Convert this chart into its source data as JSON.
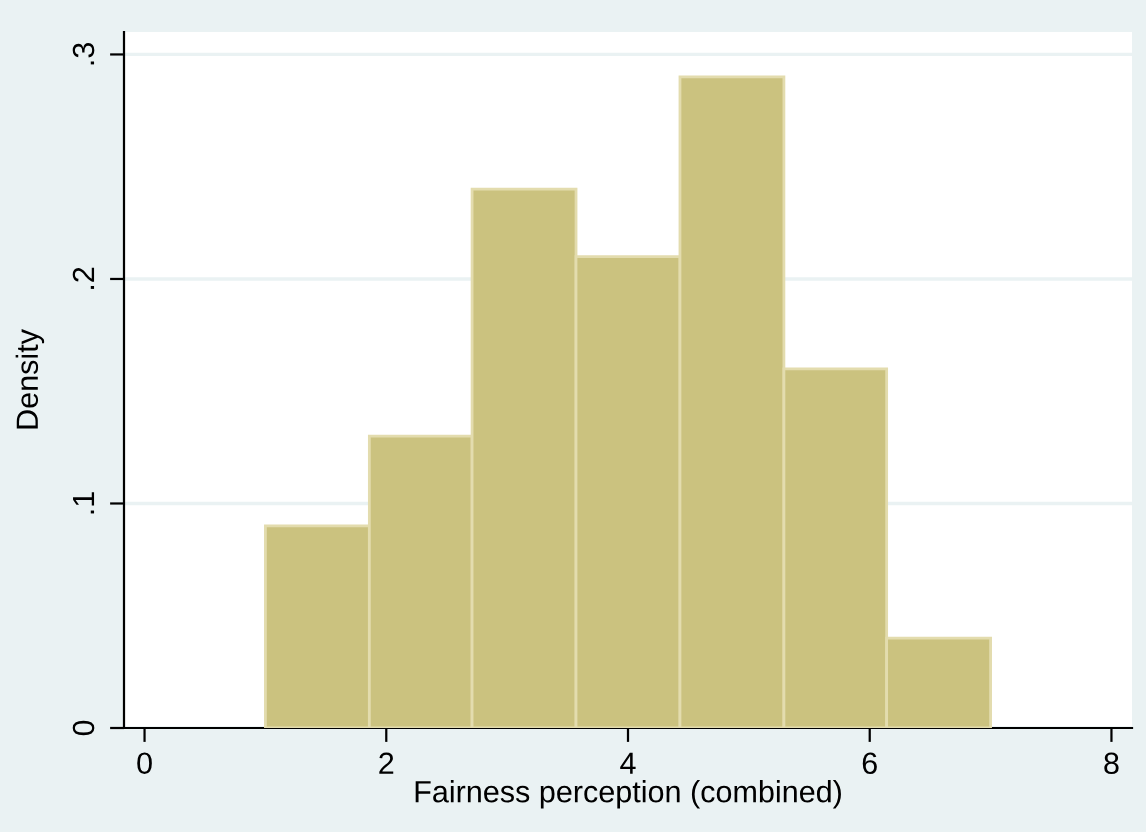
{
  "chart_data": {
    "type": "histogram",
    "xlabel": "Fairness perception (combined)",
    "ylabel": "Density",
    "bins": [
      1,
      1.86,
      2.71,
      3.57,
      4.43,
      5.29,
      6.14,
      7
    ],
    "values": [
      0.09,
      0.13,
      0.24,
      0.21,
      0.29,
      0.16,
      0.04
    ],
    "color": "#cbc27f",
    "xlim": [
      -0.17,
      8.17
    ],
    "xticks": [
      0,
      2,
      4,
      6,
      8
    ],
    "ylim": [
      0,
      0.31
    ],
    "yticks": [
      0,
      {
        "value": 0.1,
        "label": ".1"
      },
      {
        "value": 0.2,
        "label": ".2"
      },
      {
        "value": 0.3,
        "label": ".3"
      }
    ],
    "grid": "y"
  }
}
